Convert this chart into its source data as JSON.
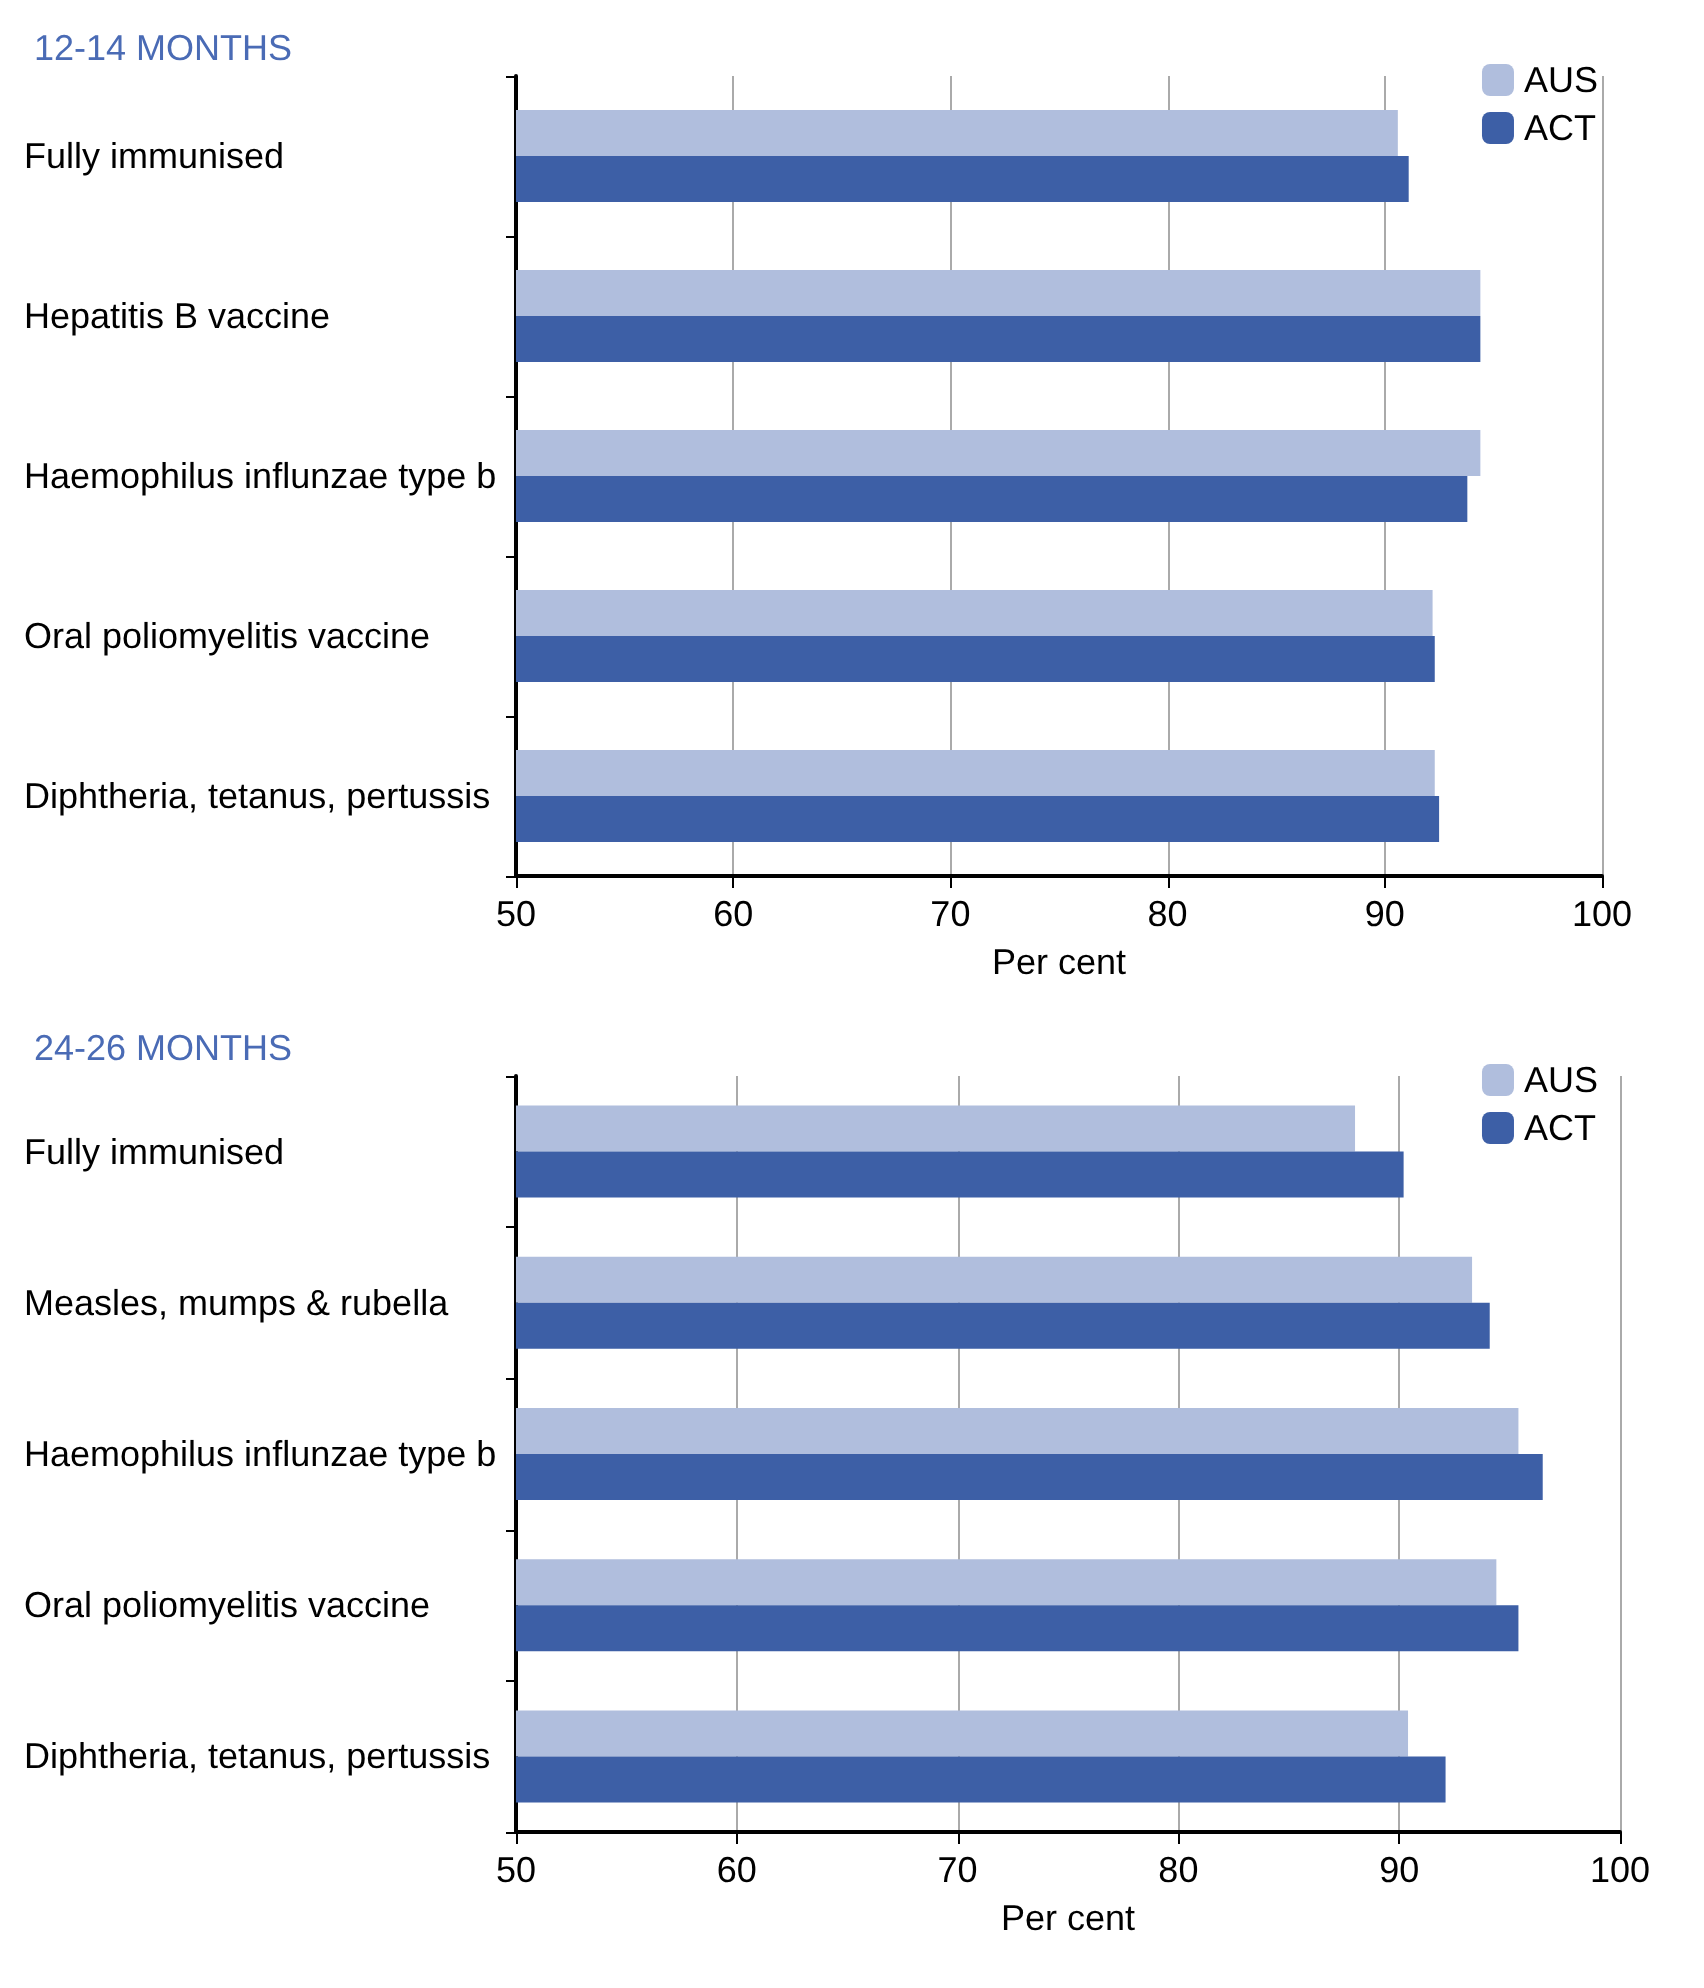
{
  "chart_data": [
    {
      "type": "bar",
      "orientation": "horizontal",
      "title": "12-14 MONTHS",
      "xlabel": "Per cent",
      "categories": [
        "Fully immunised",
        "Hepatitis B vaccine",
        "Haemophilus influnzae type b",
        "Oral poliomyelitis vaccine",
        "Diphtheria, tetanus, pertussis"
      ],
      "series": [
        {
          "name": "AUS",
          "color": "#b0bedd",
          "values": [
            90.6,
            94.4,
            94.4,
            92.2,
            92.3
          ]
        },
        {
          "name": "ACT",
          "color": "#3d5fa6",
          "values": [
            91.1,
            94.4,
            93.8,
            92.3,
            92.5
          ]
        }
      ],
      "xlim": [
        50,
        100
      ],
      "xticks": [
        50,
        60,
        70,
        80,
        90,
        100
      ],
      "grid": "x",
      "legend": "top right"
    },
    {
      "type": "bar",
      "orientation": "horizontal",
      "title": "24-26 MONTHS",
      "xlabel": "Per cent",
      "categories": [
        "Fully immunised",
        "Measles, mumps & rubella",
        "Haemophilus influnzae type b",
        "Oral poliomyelitis vaccine",
        "Diphtheria, tetanus, pertussis"
      ],
      "series": [
        {
          "name": "AUS",
          "color": "#b0bedd",
          "values": [
            88.0,
            93.3,
            95.4,
            94.4,
            90.4
          ]
        },
        {
          "name": "ACT",
          "color": "#3d5fa6",
          "values": [
            90.2,
            94.1,
            96.5,
            95.4,
            92.1
          ]
        }
      ],
      "xlim": [
        50,
        100
      ],
      "xticks": [
        50,
        60,
        70,
        80,
        90,
        100
      ],
      "grid": "x",
      "legend": "top right"
    }
  ]
}
